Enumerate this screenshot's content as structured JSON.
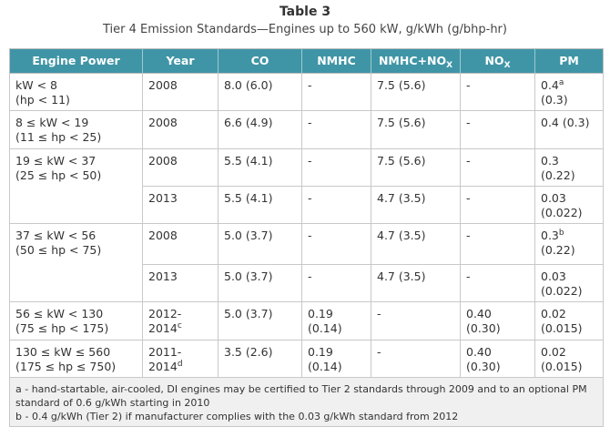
{
  "caption": {
    "title": "Table 3",
    "subtitle": "Tier 4 Emission Standards—Engines up to 560 kW, g/kWh (g/bhp-hr)"
  },
  "headers": {
    "engine_power": "Engine Power",
    "year": "Year",
    "co": "CO",
    "nmhc": "NMHC",
    "nmhc_nox": "NMHC+NO",
    "nmhc_nox_sub": "X",
    "nox": "NO",
    "nox_sub": "X",
    "pm": "PM"
  },
  "rows": [
    {
      "power_kw": "kW < 8",
      "power_hp": "(hp < 11)",
      "entries": [
        {
          "year": "2008",
          "co": "8.0 (6.0)",
          "nmhc": "-",
          "nmhc_nox": "7.5 (5.6)",
          "nox": "-",
          "pm_a": "0.4",
          "pm_sup": "a",
          "pm_b": "(0.3)"
        }
      ]
    },
    {
      "power_kw": "8 ≤ kW < 19",
      "power_hp": "(11 ≤ hp < 25)",
      "entries": [
        {
          "year": "2008",
          "co": "6.6 (4.9)",
          "nmhc": "-",
          "nmhc_nox": "7.5 (5.6)",
          "nox": "-",
          "pm_a": "0.4 (0.3)",
          "pm_sup": "",
          "pm_b": ""
        }
      ]
    },
    {
      "power_kw": "19 ≤ kW < 37",
      "power_hp": "(25 ≤ hp < 50)",
      "entries": [
        {
          "year": "2008",
          "co": "5.5 (4.1)",
          "nmhc": "-",
          "nmhc_nox": "7.5 (5.6)",
          "nox": "-",
          "pm_a": "0.3",
          "pm_sup": "",
          "pm_b": "(0.22)"
        },
        {
          "year": "2013",
          "co": "5.5 (4.1)",
          "nmhc": "-",
          "nmhc_nox": "4.7 (3.5)",
          "nox": "-",
          "pm_a": "0.03",
          "pm_sup": "",
          "pm_b": "(0.022)"
        }
      ]
    },
    {
      "power_kw": "37 ≤ kW < 56",
      "power_hp": "(50 ≤ hp < 75)",
      "entries": [
        {
          "year": "2008",
          "co": "5.0 (3.7)",
          "nmhc": "-",
          "nmhc_nox": "4.7 (3.5)",
          "nox": "-",
          "pm_a": "0.3",
          "pm_sup": "b",
          "pm_b": "(0.22)"
        },
        {
          "year": "2013",
          "co": "5.0 (3.7)",
          "nmhc": "-",
          "nmhc_nox": "4.7 (3.5)",
          "nox": "-",
          "pm_a": "0.03",
          "pm_sup": "",
          "pm_b": "(0.022)"
        }
      ]
    },
    {
      "power_kw": "56 ≤ kW < 130",
      "power_hp": "(75 ≤ hp < 175)",
      "entries": [
        {
          "year": "2012-2014",
          "year_sup": "c",
          "co": "5.0 (3.7)",
          "nmhc_a": "0.19",
          "nmhc_b": "(0.14)",
          "nmhc_nox": "-",
          "nox_a": "0.40",
          "nox_b": "(0.30)",
          "pm_a": "0.02",
          "pm_sup": "",
          "pm_b": "(0.015)"
        }
      ]
    },
    {
      "power_kw": "130 ≤ kW ≤ 560",
      "power_hp": "(175 ≤ hp ≤ 750)",
      "entries": [
        {
          "year": "2011-2014",
          "year_sup": "d",
          "co": "3.5 (2.6)",
          "nmhc_a": "0.19",
          "nmhc_b": "(0.14)",
          "nmhc_nox": "-",
          "nox_a": "0.40",
          "nox_b": "(0.30)",
          "pm_a": "0.02",
          "pm_sup": "",
          "pm_b": "(0.015)"
        }
      ]
    }
  ],
  "notes": [
    "a - hand-startable, air-cooled, DI engines may be certified to Tier 2 standards through 2009 and to an optional PM standard of 0.6 g/kWh starting in 2010",
    "b - 0.4 g/kWh (Tier 2) if manufacturer complies with the 0.03 g/kWh standard from 2012"
  ]
}
